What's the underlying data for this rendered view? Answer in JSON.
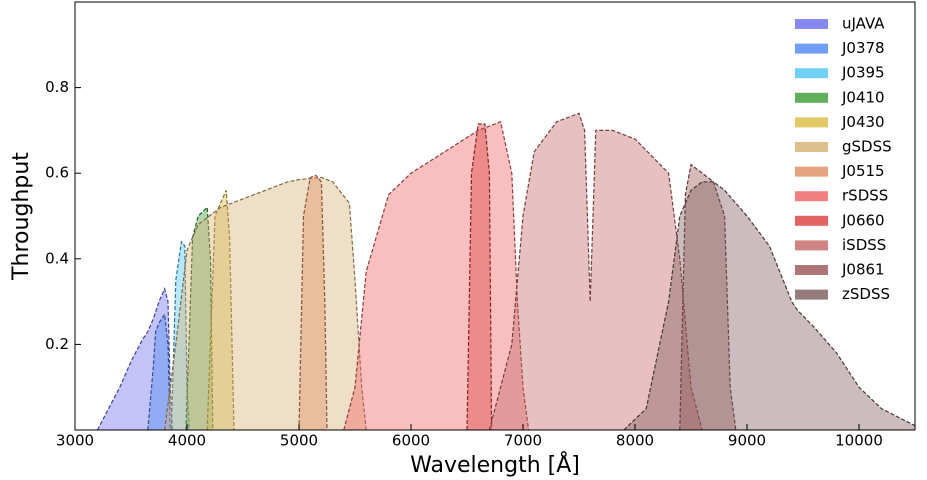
{
  "chart_data": {
    "type": "area",
    "xlabel": "Wavelength [Å]",
    "ylabel": "Throughput",
    "xlim": [
      3000,
      10500
    ],
    "xticks": [
      3000,
      4000,
      5000,
      6000,
      7000,
      8000,
      9000,
      10000
    ],
    "ylim": [
      0,
      1.0
    ],
    "yticks": [
      0.2,
      0.4,
      0.6,
      0.8
    ],
    "legend": "upper right",
    "series": [
      {
        "name": "uJAVA",
        "color": "#6a6aee",
        "x": [
          3200,
          3300,
          3400,
          3500,
          3600,
          3650,
          3700,
          3750,
          3800,
          3830,
          3850,
          3870
        ],
        "values": [
          0,
          0.05,
          0.1,
          0.16,
          0.21,
          0.23,
          0.26,
          0.3,
          0.33,
          0.3,
          0.1,
          0
        ]
      },
      {
        "name": "J0378",
        "color": "#4c86f0",
        "x": [
          3650,
          3700,
          3720,
          3750,
          3800,
          3830,
          3850
        ],
        "values": [
          0,
          0.15,
          0.23,
          0.25,
          0.27,
          0.2,
          0
        ]
      },
      {
        "name": "J0395",
        "color": "#4cc4f4",
        "x": [
          3860,
          3900,
          3950,
          3980,
          4000,
          4020
        ],
        "values": [
          0,
          0.35,
          0.44,
          0.43,
          0.1,
          0
        ]
      },
      {
        "name": "J0410",
        "color": "#3a9a34",
        "x": [
          3990,
          4050,
          4100,
          4180,
          4210,
          4230
        ],
        "values": [
          0,
          0.45,
          0.5,
          0.52,
          0.4,
          0
        ]
      },
      {
        "name": "J0430",
        "color": "#dcbc40",
        "x": [
          4180,
          4250,
          4300,
          4350,
          4380,
          4420
        ],
        "values": [
          0,
          0.5,
          0.53,
          0.56,
          0.45,
          0
        ]
      },
      {
        "name": "gSDSS",
        "color": "#d4b070",
        "x": [
          3800,
          3900,
          4000,
          4100,
          4300,
          4600,
          4900,
          5000,
          5200,
          5300,
          5450,
          5500,
          5560,
          5600
        ],
        "values": [
          0,
          0.2,
          0.42,
          0.48,
          0.52,
          0.55,
          0.58,
          0.585,
          0.59,
          0.58,
          0.53,
          0.35,
          0.1,
          0
        ]
      },
      {
        "name": "J0515",
        "color": "#e08c60",
        "x": [
          5000,
          5040,
          5100,
          5150,
          5200,
          5230,
          5250
        ],
        "values": [
          0,
          0.5,
          0.59,
          0.595,
          0.58,
          0.3,
          0
        ]
      },
      {
        "name": "rSDSS",
        "color": "#f06060",
        "x": [
          5400,
          5500,
          5600,
          5800,
          6000,
          6300,
          6600,
          6800,
          6900,
          6950,
          7000,
          7050
        ],
        "values": [
          0,
          0.1,
          0.37,
          0.55,
          0.6,
          0.65,
          0.7,
          0.72,
          0.6,
          0.3,
          0.1,
          0
        ]
      },
      {
        "name": "J0660",
        "color": "#dc3c3c",
        "x": [
          6500,
          6540,
          6600,
          6660,
          6700,
          6720
        ],
        "values": [
          0,
          0.6,
          0.715,
          0.715,
          0.6,
          0
        ]
      },
      {
        "name": "iSDSS",
        "color": "#c46464",
        "x": [
          6700,
          6900,
          7000,
          7100,
          7300,
          7500,
          7550,
          7600,
          7650,
          7800,
          8000,
          8300,
          8400,
          8500,
          8600
        ],
        "values": [
          0,
          0.2,
          0.5,
          0.65,
          0.72,
          0.74,
          0.7,
          0.3,
          0.7,
          0.7,
          0.68,
          0.6,
          0.4,
          0.1,
          0
        ]
      },
      {
        "name": "J0861",
        "color": "#9a5454",
        "x": [
          8400,
          8450,
          8500,
          8600,
          8700,
          8800,
          8850,
          8900
        ],
        "values": [
          0,
          0.55,
          0.62,
          0.6,
          0.58,
          0.5,
          0.1,
          0
        ]
      },
      {
        "name": "zSDSS",
        "color": "#7c5a5a",
        "x": [
          7900,
          8100,
          8300,
          8400,
          8500,
          8600,
          8700,
          8800,
          9000,
          9200,
          9400,
          9450,
          9600,
          9800,
          10000,
          10200,
          10500
        ],
        "values": [
          0,
          0.05,
          0.3,
          0.5,
          0.56,
          0.58,
          0.58,
          0.56,
          0.5,
          0.43,
          0.3,
          0.28,
          0.24,
          0.18,
          0.1,
          0.05,
          0.01
        ]
      }
    ]
  }
}
